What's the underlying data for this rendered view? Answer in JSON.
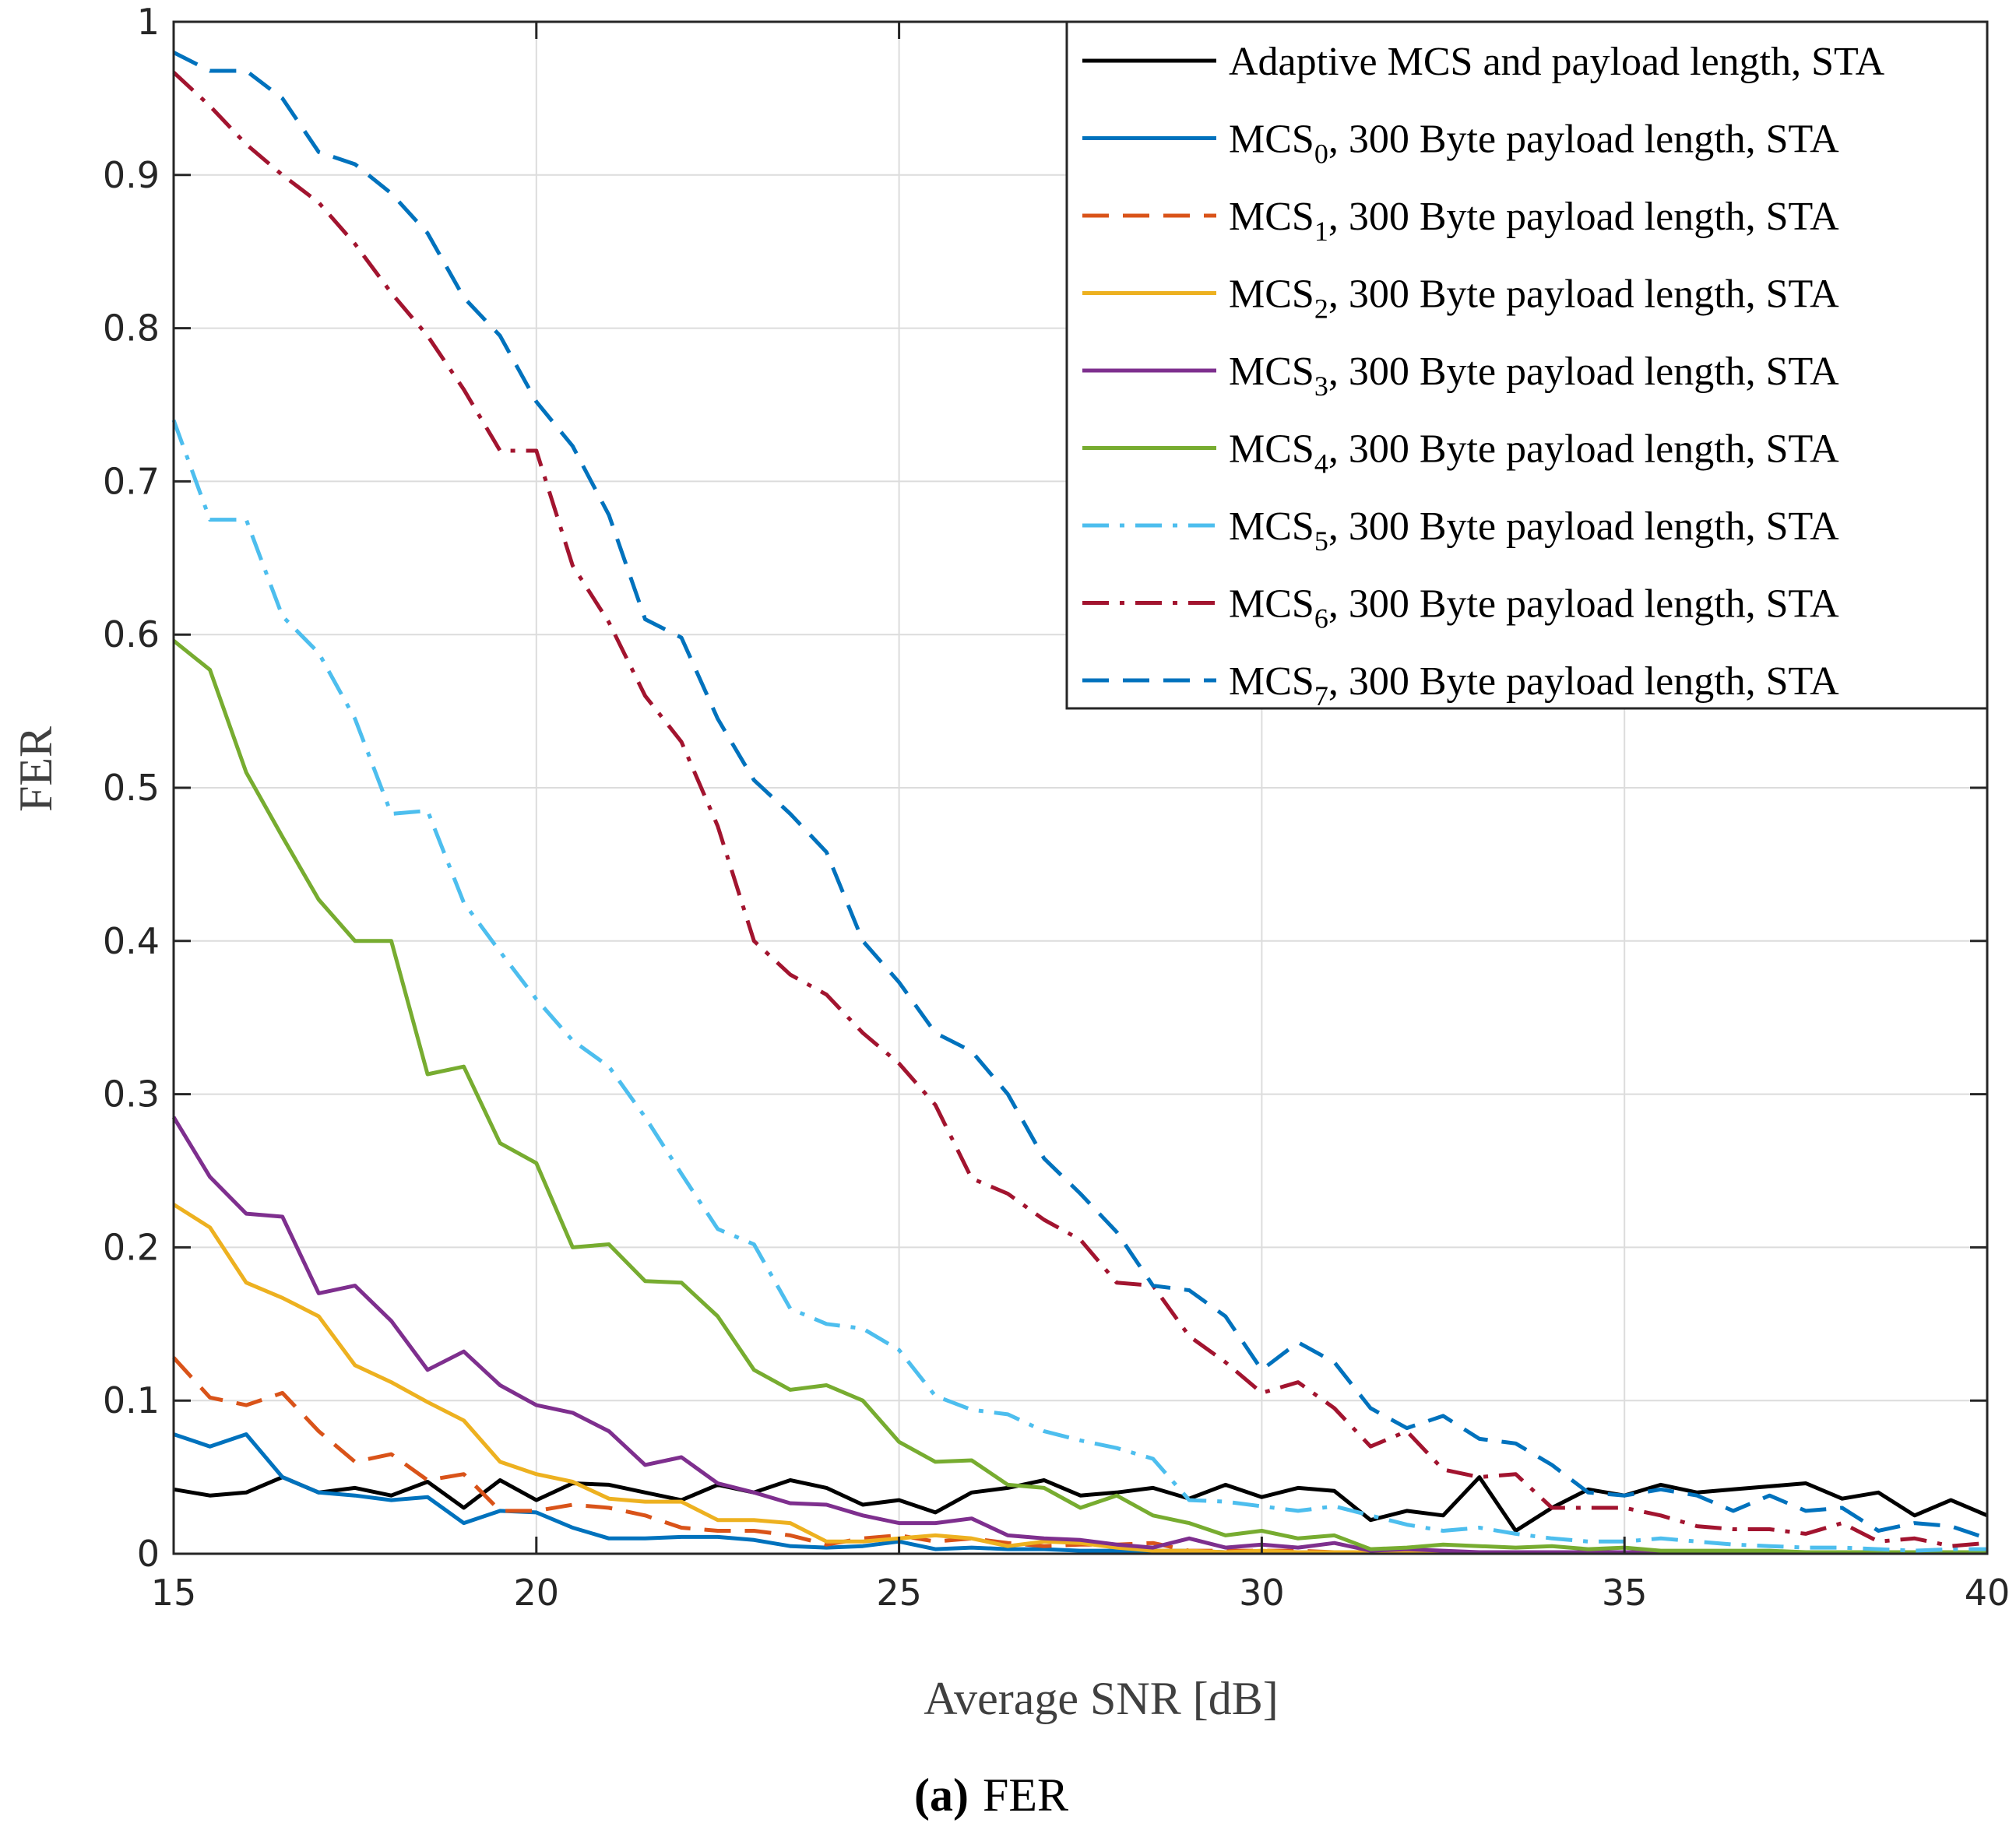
{
  "chart_data": {
    "type": "line",
    "xlabel": "Average SNR [dB]",
    "ylabel": "FER",
    "xlim": [
      15,
      40
    ],
    "ylim": [
      0,
      1
    ],
    "xticks": [
      15,
      20,
      25,
      30,
      35,
      40
    ],
    "yticks": [
      0,
      0.1,
      0.2,
      0.3,
      0.4,
      0.5,
      0.6,
      0.7,
      0.8,
      0.9,
      1
    ],
    "ytick_labels": [
      "0",
      "0.1",
      "0.2",
      "0.3",
      "0.4",
      "0.5",
      "0.6",
      "0.7",
      "0.8",
      "0.9",
      "1"
    ],
    "grid": true,
    "legend_position": "top-right",
    "caption": {
      "label": "(a)",
      "text": "FER"
    },
    "series": [
      {
        "name": "Adaptive MCS and payload length, STA",
        "legend_prefix": "Adaptive MCS and payload length, STA",
        "legend_sub": "",
        "legend_suffix": "",
        "color": "#000000",
        "dash": "solid",
        "x": [
          15,
          15.5,
          16,
          16.5,
          17,
          17.5,
          18,
          18.5,
          19,
          19.5,
          20,
          20.5,
          21,
          21.5,
          22,
          22.5,
          23,
          23.5,
          24,
          24.5,
          25,
          25.5,
          26,
          26.5,
          27,
          27.5,
          28,
          28.5,
          29,
          29.5,
          30,
          30.5,
          31,
          31.5,
          32,
          32.5,
          33,
          33.5,
          34,
          34.5,
          35,
          35.5,
          36,
          36.5,
          37,
          37.5,
          38,
          38.5,
          39,
          39.5,
          40
        ],
        "y": [
          0.042,
          0.038,
          0.04,
          0.05,
          0.04,
          0.043,
          0.038,
          0.047,
          0.03,
          0.048,
          0.035,
          0.046,
          0.045,
          0.04,
          0.035,
          0.045,
          0.04,
          0.048,
          0.043,
          0.032,
          0.035,
          0.027,
          0.04,
          0.043,
          0.048,
          0.038,
          0.04,
          0.043,
          0.036,
          0.045,
          0.037,
          0.043,
          0.041,
          0.022,
          0.028,
          0.025,
          0.05,
          0.015,
          0.03,
          0.042,
          0.038,
          0.045,
          0.04,
          0.042,
          0.044,
          0.046,
          0.036,
          0.04,
          0.025,
          0.035,
          0.025
        ]
      },
      {
        "name": "MCS0, 300 Byte payload length, STA",
        "legend_prefix": "MCS",
        "legend_sub": "0",
        "legend_suffix": ", 300 Byte payload length, STA",
        "color": "#0072BD",
        "dash": "solid",
        "x": [
          15,
          15.5,
          16,
          16.5,
          17,
          17.5,
          18,
          18.5,
          19,
          19.5,
          20,
          20.5,
          21,
          21.5,
          22,
          22.5,
          23,
          23.5,
          24,
          24.5,
          25,
          25.5,
          26,
          26.5,
          27,
          27.5,
          28,
          28.5,
          29,
          29.5,
          30,
          30.5,
          31,
          31.5,
          32,
          32.5,
          33,
          33.5,
          34,
          34.5,
          35,
          35.5,
          36,
          36.5,
          37,
          37.5,
          38,
          38.5,
          39,
          39.5,
          40
        ],
        "y": [
          0.078,
          0.07,
          0.078,
          0.05,
          0.04,
          0.038,
          0.035,
          0.037,
          0.02,
          0.028,
          0.027,
          0.017,
          0.01,
          0.01,
          0.011,
          0.011,
          0.009,
          0.005,
          0.004,
          0.005,
          0.008,
          0.003,
          0.004,
          0.003,
          0.003,
          0.002,
          0.002,
          0.002,
          0.002,
          0.001,
          0.001,
          0.001,
          0.001,
          0.001,
          0.001,
          0.001,
          0.001,
          0.001,
          0.001,
          0.001,
          0.001,
          0.001,
          0.001,
          0.001,
          0.001,
          0.001,
          0.001,
          0.001,
          0.001,
          0.001,
          0.001
        ]
      },
      {
        "name": "MCS1, 300 Byte payload length, STA",
        "legend_prefix": "MCS",
        "legend_sub": "1",
        "legend_suffix": ", 300 Byte payload length, STA",
        "color": "#D95319",
        "dash": "dashed",
        "x": [
          15,
          15.5,
          16,
          16.5,
          17,
          17.5,
          18,
          18.5,
          19,
          19.5,
          20,
          20.5,
          21,
          21.5,
          22,
          22.5,
          23,
          23.5,
          24,
          24.5,
          25,
          25.5,
          26,
          26.5,
          27,
          27.5,
          28,
          28.5,
          29,
          29.5,
          30,
          30.5,
          31,
          31.5,
          32,
          32.5,
          33,
          33.5,
          34,
          34.5,
          35,
          35.5,
          36,
          36.5,
          37,
          37.5,
          38,
          38.5,
          39,
          39.5,
          40
        ],
        "y": [
          0.128,
          0.102,
          0.097,
          0.105,
          0.08,
          0.06,
          0.065,
          0.048,
          0.052,
          0.028,
          0.028,
          0.032,
          0.03,
          0.025,
          0.017,
          0.015,
          0.015,
          0.012,
          0.006,
          0.01,
          0.012,
          0.008,
          0.01,
          0.007,
          0.005,
          0.006,
          0.006,
          0.007,
          0.002,
          0.002,
          0.002,
          0.002,
          0.001,
          0.001,
          0.001,
          0.001,
          0.001,
          0.001,
          0.001,
          0.001,
          0.001,
          0.001,
          0.001,
          0.001,
          0.001,
          0.001,
          0.001,
          0.001,
          0.001,
          0.001,
          0.001
        ]
      },
      {
        "name": "MCS2, 300 Byte payload length, STA",
        "legend_prefix": "MCS",
        "legend_sub": "2",
        "legend_suffix": ", 300 Byte payload length, STA",
        "color": "#EDB120",
        "dash": "solid",
        "x": [
          15,
          15.5,
          16,
          16.5,
          17,
          17.5,
          18,
          18.5,
          19,
          19.5,
          20,
          20.5,
          21,
          21.5,
          22,
          22.5,
          23,
          23.5,
          24,
          24.5,
          25,
          25.5,
          26,
          26.5,
          27,
          27.5,
          28,
          28.5,
          29,
          29.5,
          30,
          30.5,
          31,
          31.5,
          32,
          32.5,
          33,
          33.5,
          34,
          34.5,
          35,
          35.5,
          36,
          36.5,
          37,
          37.5,
          38,
          38.5,
          39,
          39.5,
          40
        ],
        "y": [
          0.228,
          0.213,
          0.177,
          0.167,
          0.155,
          0.123,
          0.112,
          0.099,
          0.087,
          0.06,
          0.052,
          0.047,
          0.036,
          0.034,
          0.034,
          0.022,
          0.022,
          0.02,
          0.008,
          0.008,
          0.01,
          0.012,
          0.01,
          0.005,
          0.008,
          0.007,
          0.004,
          0.002,
          0.002,
          0.001,
          0.002,
          0.001,
          0.001,
          0.001,
          0.001,
          0.001,
          0.001,
          0.001,
          0.001,
          0.001,
          0.001,
          0.001,
          0.001,
          0.001,
          0.001,
          0.001,
          0.001,
          0.001,
          0.001,
          0.001,
          0.001
        ]
      },
      {
        "name": "MCS3, 300 Byte payload length, STA",
        "legend_prefix": "MCS",
        "legend_sub": "3",
        "legend_suffix": ", 300 Byte payload length, STA",
        "color": "#7E2F8E",
        "dash": "solid",
        "x": [
          15,
          15.5,
          16,
          16.5,
          17,
          17.5,
          18,
          18.5,
          19,
          19.5,
          20,
          20.5,
          21,
          21.5,
          22,
          22.5,
          23,
          23.5,
          24,
          24.5,
          25,
          25.5,
          26,
          26.5,
          27,
          27.5,
          28,
          28.5,
          29,
          29.5,
          30,
          30.5,
          31,
          31.5,
          32,
          32.5,
          33,
          33.5,
          34,
          34.5,
          35,
          35.5,
          36,
          36.5,
          37,
          37.5,
          38,
          38.5,
          39,
          39.5,
          40
        ],
        "y": [
          0.285,
          0.246,
          0.222,
          0.22,
          0.17,
          0.175,
          0.152,
          0.12,
          0.132,
          0.11,
          0.097,
          0.092,
          0.08,
          0.058,
          0.063,
          0.046,
          0.04,
          0.033,
          0.032,
          0.025,
          0.02,
          0.02,
          0.023,
          0.012,
          0.01,
          0.009,
          0.006,
          0.004,
          0.01,
          0.004,
          0.006,
          0.004,
          0.007,
          0.002,
          0.003,
          0.002,
          0.001,
          0.001,
          0.001,
          0.001,
          0.001,
          0.001,
          0.001,
          0.001,
          0.001,
          0.001,
          0.001,
          0.001,
          0.001,
          0.001,
          0.001
        ]
      },
      {
        "name": "MCS4, 300 Byte payload length, STA",
        "legend_prefix": "MCS",
        "legend_sub": "4",
        "legend_suffix": ", 300 Byte payload length, STA",
        "color": "#77AC30",
        "dash": "solid",
        "x": [
          15,
          15.5,
          16,
          16.5,
          17,
          17.5,
          18,
          18.5,
          19,
          19.5,
          20,
          20.5,
          21,
          21.5,
          22,
          22.5,
          23,
          23.5,
          24,
          24.5,
          25,
          25.5,
          26,
          26.5,
          27,
          27.5,
          28,
          28.5,
          29,
          29.5,
          30,
          30.5,
          31,
          31.5,
          32,
          32.5,
          33,
          33.5,
          34,
          34.5,
          35,
          35.5,
          36,
          36.5,
          37,
          37.5,
          38,
          38.5,
          39,
          39.5,
          40
        ],
        "y": [
          0.596,
          0.577,
          0.51,
          0.468,
          0.427,
          0.4,
          0.4,
          0.313,
          0.318,
          0.268,
          0.255,
          0.2,
          0.202,
          0.178,
          0.177,
          0.155,
          0.12,
          0.107,
          0.11,
          0.1,
          0.073,
          0.06,
          0.061,
          0.045,
          0.043,
          0.03,
          0.038,
          0.025,
          0.02,
          0.012,
          0.015,
          0.01,
          0.012,
          0.003,
          0.004,
          0.006,
          0.005,
          0.004,
          0.005,
          0.003,
          0.004,
          0.002,
          0.002,
          0.002,
          0.002,
          0.001,
          0.001,
          0.001,
          0.001,
          0.001,
          0.001
        ]
      },
      {
        "name": "MCS5, 300 Byte payload length, STA",
        "legend_prefix": "MCS",
        "legend_sub": "5",
        "legend_suffix": ", 300 Byte payload length, STA",
        "color": "#4DBEEE",
        "dash": "dashdot",
        "x": [
          15,
          15.5,
          16,
          16.5,
          17,
          17.5,
          18,
          18.5,
          19,
          19.5,
          20,
          20.5,
          21,
          21.5,
          22,
          22.5,
          23,
          23.5,
          24,
          24.5,
          25,
          25.5,
          26,
          26.5,
          27,
          27.5,
          28,
          28.5,
          29,
          29.5,
          30,
          30.5,
          31,
          31.5,
          32,
          32.5,
          33,
          33.5,
          34,
          34.5,
          35,
          35.5,
          36,
          36.5,
          37,
          37.5,
          38,
          38.5,
          39,
          39.5,
          40
        ],
        "y": [
          0.74,
          0.675,
          0.675,
          0.612,
          0.588,
          0.545,
          0.483,
          0.485,
          0.425,
          0.393,
          0.362,
          0.335,
          0.318,
          0.285,
          0.248,
          0.212,
          0.202,
          0.16,
          0.15,
          0.147,
          0.133,
          0.103,
          0.094,
          0.091,
          0.08,
          0.074,
          0.069,
          0.062,
          0.035,
          0.034,
          0.031,
          0.028,
          0.031,
          0.025,
          0.019,
          0.015,
          0.017,
          0.013,
          0.01,
          0.008,
          0.008,
          0.01,
          0.008,
          0.006,
          0.005,
          0.004,
          0.004,
          0.003,
          0.002,
          0.003,
          0.003
        ]
      },
      {
        "name": "MCS6, 300 Byte payload length, STA",
        "legend_prefix": "MCS",
        "legend_sub": "6",
        "legend_suffix": ", 300 Byte payload length, STA",
        "color": "#A2142F",
        "dash": "dashdot",
        "x": [
          15,
          15.5,
          16,
          16.5,
          17,
          17.5,
          18,
          18.5,
          19,
          19.5,
          20,
          20.5,
          21,
          21.5,
          22,
          22.5,
          23,
          23.5,
          24,
          24.5,
          25,
          25.5,
          26,
          26.5,
          27,
          27.5,
          28,
          28.5,
          29,
          29.5,
          30,
          30.5,
          31,
          31.5,
          32,
          32.5,
          33,
          33.5,
          34,
          34.5,
          35,
          35.5,
          36,
          36.5,
          37,
          37.5,
          38,
          38.5,
          39,
          39.5,
          40
        ],
        "y": [
          0.967,
          0.945,
          0.92,
          0.9,
          0.882,
          0.855,
          0.823,
          0.795,
          0.76,
          0.72,
          0.72,
          0.645,
          0.608,
          0.56,
          0.53,
          0.475,
          0.4,
          0.378,
          0.365,
          0.34,
          0.32,
          0.293,
          0.245,
          0.235,
          0.218,
          0.205,
          0.177,
          0.175,
          0.142,
          0.125,
          0.105,
          0.112,
          0.095,
          0.07,
          0.08,
          0.055,
          0.05,
          0.052,
          0.03,
          0.03,
          0.03,
          0.025,
          0.018,
          0.016,
          0.016,
          0.013,
          0.02,
          0.008,
          0.01,
          0.005,
          0.007
        ]
      },
      {
        "name": "MCS7, 300 Byte payload length, STA",
        "legend_prefix": "MCS",
        "legend_sub": "7",
        "legend_suffix": ", 300 Byte payload length, STA",
        "color": "#0072BD",
        "dash": "dashed",
        "x": [
          15,
          15.5,
          16,
          16.5,
          17,
          17.5,
          18,
          18.5,
          19,
          19.5,
          20,
          20.5,
          21,
          21.5,
          22,
          22.5,
          23,
          23.5,
          24,
          24.5,
          25,
          25.5,
          26,
          26.5,
          27,
          27.5,
          28,
          28.5,
          29,
          29.5,
          30,
          30.5,
          31,
          31.5,
          32,
          32.5,
          33,
          33.5,
          34,
          34.5,
          35,
          35.5,
          36,
          36.5,
          37,
          37.5,
          38,
          38.5,
          39,
          39.5,
          40
        ],
        "y": [
          0.98,
          0.968,
          0.968,
          0.95,
          0.915,
          0.907,
          0.888,
          0.862,
          0.82,
          0.795,
          0.752,
          0.723,
          0.678,
          0.61,
          0.598,
          0.545,
          0.505,
          0.483,
          0.458,
          0.4,
          0.373,
          0.34,
          0.328,
          0.3,
          0.258,
          0.235,
          0.21,
          0.175,
          0.172,
          0.155,
          0.12,
          0.138,
          0.125,
          0.095,
          0.082,
          0.09,
          0.075,
          0.072,
          0.058,
          0.04,
          0.038,
          0.042,
          0.038,
          0.028,
          0.038,
          0.028,
          0.03,
          0.015,
          0.02,
          0.018,
          0.01
        ]
      }
    ]
  }
}
